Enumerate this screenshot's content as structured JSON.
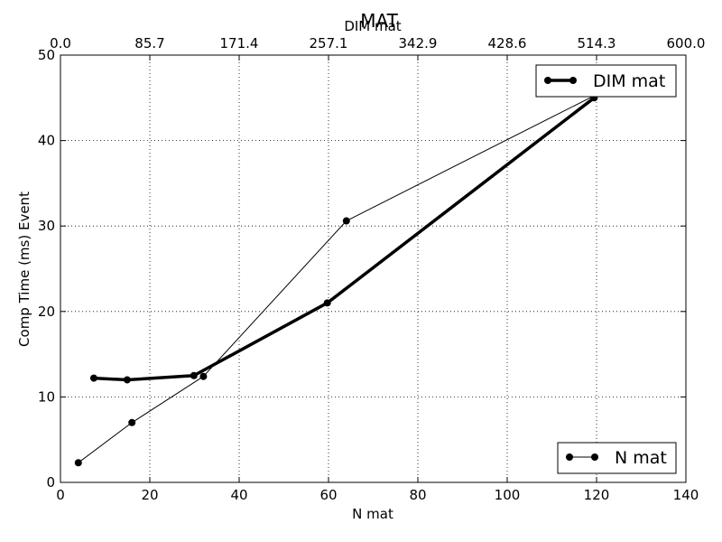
{
  "chart_data": {
    "type": "line",
    "title": "MAT",
    "xlabel": "N mat",
    "ylabel": "Comp Time (ms) Event",
    "x2label": "DIM mat",
    "xlim": [
      0,
      140
    ],
    "ylim": [
      0,
      50
    ],
    "x2lim": [
      0,
      600
    ],
    "x_ticks": [
      "0",
      "20",
      "40",
      "60",
      "80",
      "100",
      "120",
      "140"
    ],
    "y_ticks": [
      "0",
      "10",
      "20",
      "30",
      "40",
      "50"
    ],
    "x2_ticks": [
      "0.0",
      "85.7",
      "171.4",
      "257.1",
      "342.9",
      "428.6",
      "514.3",
      "600.0"
    ],
    "grid": true,
    "series": [
      {
        "name": "DIM mat",
        "axis": "top",
        "style": "thick",
        "x": [
          32,
          64,
          128,
          256,
          512
        ],
        "y": [
          12.2,
          12.0,
          12.5,
          21.0,
          45.0
        ]
      },
      {
        "name": "N mat",
        "axis": "bottom",
        "style": "thin",
        "x": [
          4,
          16,
          32,
          64,
          128
        ],
        "y": [
          2.3,
          7.0,
          12.4,
          30.6,
          47.5
        ]
      }
    ],
    "legends": [
      {
        "label": "DIM mat",
        "placement": "top-right"
      },
      {
        "label": "N mat",
        "placement": "bottom-right"
      }
    ]
  }
}
